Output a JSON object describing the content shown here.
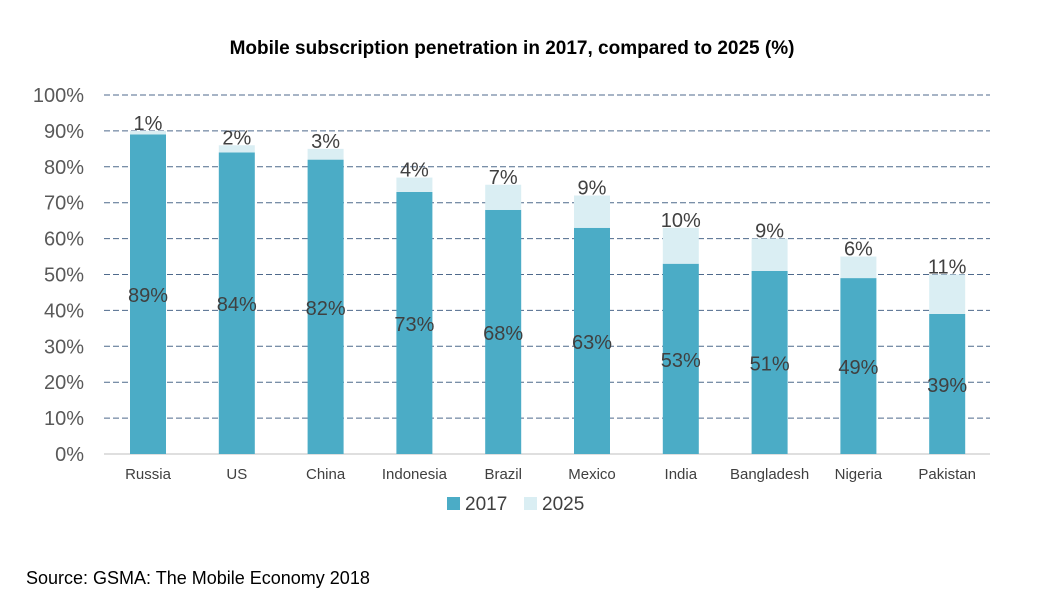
{
  "chart_data": {
    "type": "bar",
    "stacked": true,
    "title": "Mobile subscription penetration in 2017, compared to 2025 (%)",
    "categories": [
      "Russia",
      "US",
      "China",
      "Indonesia",
      "Brazil",
      "Mexico",
      "India",
      "Bangladesh",
      "Nigeria",
      "Pakistan"
    ],
    "series": [
      {
        "name": "2017",
        "values": [
          89,
          84,
          82,
          73,
          68,
          63,
          53,
          51,
          49,
          39
        ],
        "color": "#4BACC6"
      },
      {
        "name": "2025",
        "values": [
          1,
          2,
          3,
          4,
          7,
          9,
          10,
          9,
          6,
          11
        ],
        "color": "#DAEEF3"
      }
    ],
    "ylim": [
      0,
      100
    ],
    "yticks": [
      "0%",
      "10%",
      "20%",
      "30%",
      "40%",
      "50%",
      "60%",
      "70%",
      "80%",
      "90%",
      "100%"
    ],
    "grid": true,
    "legend": "bottom",
    "source": "Source: GSMA: The Mobile Economy 2018"
  }
}
